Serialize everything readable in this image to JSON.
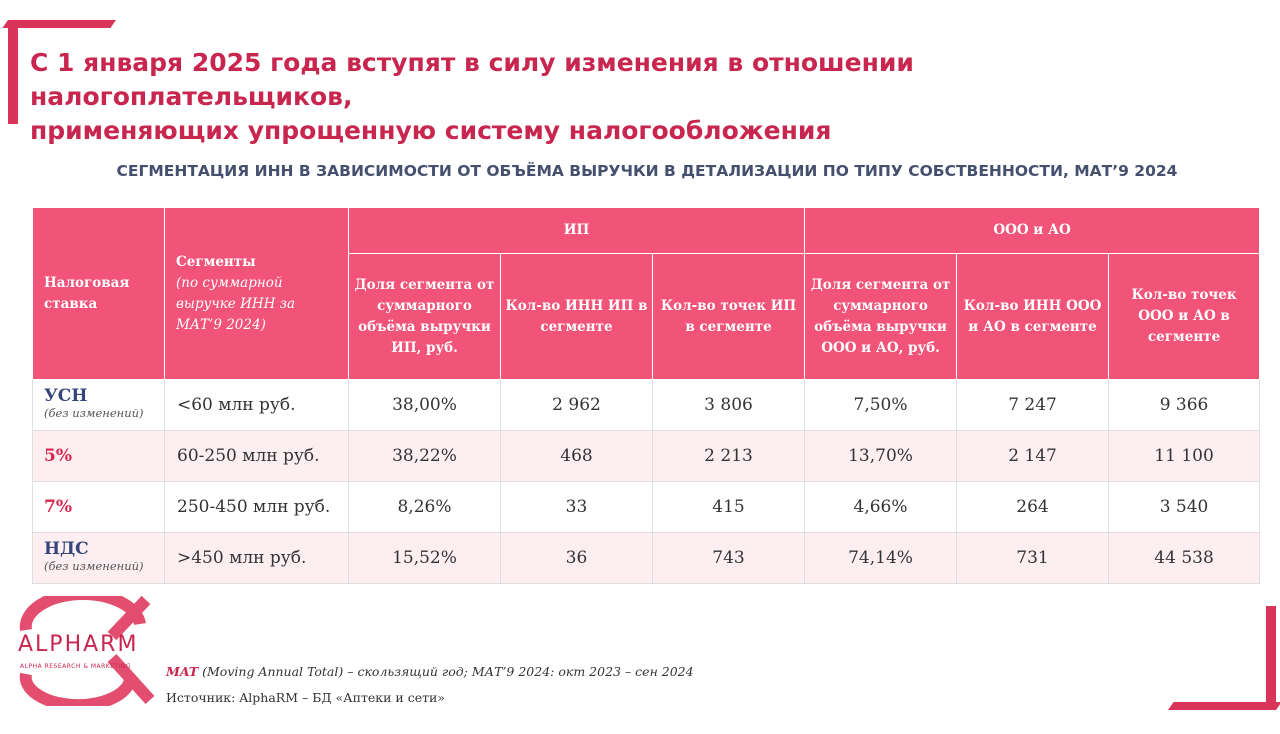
{
  "title_line1": "С 1 января 2025 года вступят в силу изменения в отношении налогоплательщиков,",
  "title_line2": "применяющих упрощенную систему налогообложения",
  "subtitle": "СЕГМЕНТАЦИЯ ИНН В ЗАВИСИМОСТИ ОТ ОБЪЁМА ВЫРУЧКИ В ДЕТАЛИЗАЦИИ ПО ТИПУ СОБСТВЕННОСТИ, МАТ’9 2024",
  "header": {
    "tax_rate": "Налоговая ставка",
    "segments_title": "Сегменты",
    "segments_note": "(по суммарной выручке ИНН за МАТ’9 2024)",
    "ip_group": "ИП",
    "ooo_group": "ООО и АО",
    "ip_share": "Доля сегмента от суммарного объёма выручки ИП, руб.",
    "ip_inn_count": "Кол-во ИНН ИП в сегменте",
    "ip_points_count": "Кол-во точек ИП в сегменте",
    "ooo_share": "Доля сегмента от суммарного объёма выручки ООО и АО, руб.",
    "ooo_inn_count": "Кол-во ИНН ООО и АО в сегменте",
    "ooo_points_count": "Кол-во точек ООО и АО в сегменте"
  },
  "rows": [
    {
      "rate": "УСН",
      "rate_note": "(без изменений)",
      "rate_color": "#33457a",
      "segment": "<60 млн руб.",
      "ip_share": "38,00%",
      "ip_inn": "2 962",
      "ip_points": "3 806",
      "ooo_share": "7,50%",
      "ooo_inn": "7 247",
      "ooo_points": "9 366"
    },
    {
      "rate": "5%",
      "rate_note": "",
      "rate_color": "#d7264f",
      "segment": "60-250 млн руб.",
      "ip_share": "38,22%",
      "ip_inn": "468",
      "ip_points": "2 213",
      "ooo_share": "13,70%",
      "ooo_inn": "2 147",
      "ooo_points": "11 100"
    },
    {
      "rate": "7%",
      "rate_note": "",
      "rate_color": "#d7264f",
      "segment": "250-450 млн руб.",
      "ip_share": "8,26%",
      "ip_inn": "33",
      "ip_points": "415",
      "ooo_share": "4,66%",
      "ooo_inn": "264",
      "ooo_points": "3 540"
    },
    {
      "rate": "НДС",
      "rate_note": "(без изменений)",
      "rate_color": "#33457a",
      "segment": ">450 млн руб.",
      "ip_share": "15,52%",
      "ip_inn": "36",
      "ip_points": "743",
      "ooo_share": "74,14%",
      "ooo_inn": "731",
      "ooo_points": "44 538"
    }
  ],
  "logo": {
    "name": "ALPHARM",
    "tagline": "ALPHA RESEARCH & MARKETING"
  },
  "footnote": {
    "mat_abbr": "MAT",
    "mat_text": " (Moving Annual Total) – скользящий год; МАТ’9 2024: окт 2023 – сен 2024"
  },
  "source": "Источник: AlphaRM – БД «Аптеки и сети»",
  "colors": {
    "accent": "#d9345a",
    "header_bg": "#f25378",
    "row_alt": "#fdeef1",
    "navy": "#44506e"
  }
}
